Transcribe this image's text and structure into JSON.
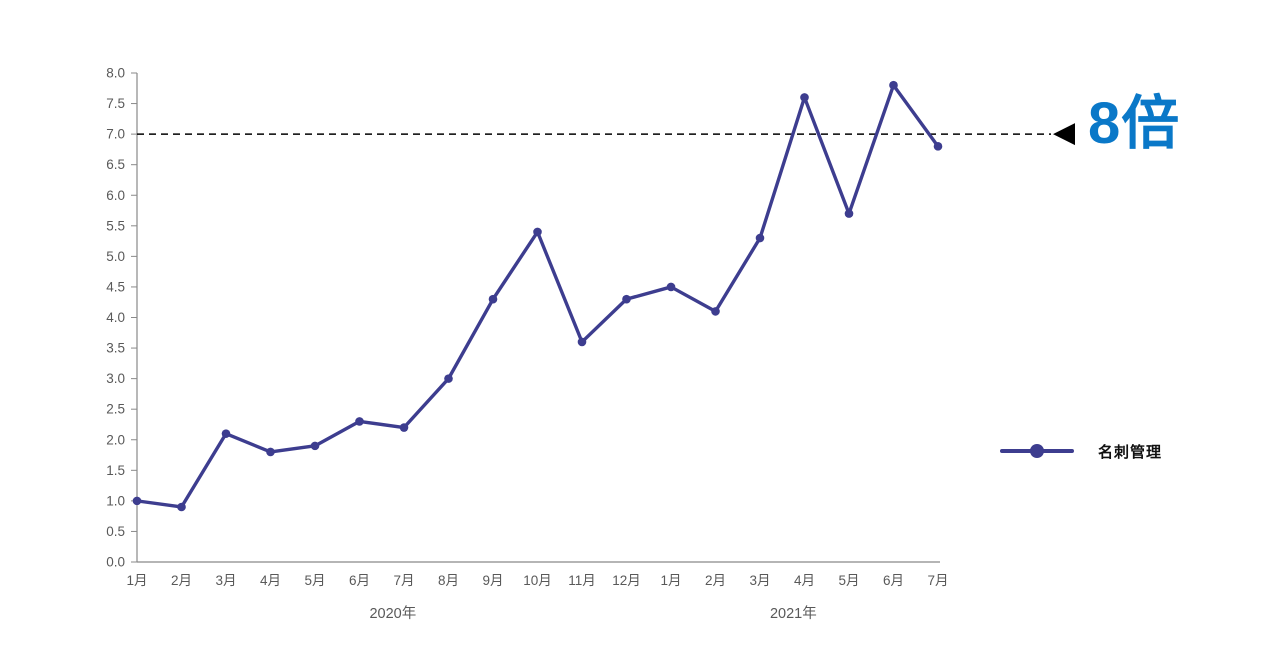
{
  "chart_data": {
    "type": "line",
    "title": "",
    "categories": [
      "1月",
      "2月",
      "3月",
      "4月",
      "5月",
      "6月",
      "7月",
      "8月",
      "9月",
      "10月",
      "11月",
      "12月",
      "1月",
      "2月",
      "3月",
      "4月",
      "5月",
      "6月",
      "7月"
    ],
    "series": [
      {
        "name": "名刺管理",
        "values": [
          1.0,
          0.9,
          2.1,
          1.8,
          1.9,
          2.3,
          2.2,
          3.0,
          4.3,
          5.4,
          3.6,
          4.3,
          4.5,
          4.1,
          5.3,
          7.6,
          5.7,
          7.8,
          6.8
        ]
      }
    ],
    "year_groups": [
      {
        "label": "2020年",
        "from": 0,
        "to": 11
      },
      {
        "label": "2021年",
        "from": 12,
        "to": 18
      }
    ],
    "ylim": [
      0,
      8
    ],
    "ytick_labels": [
      "0.0",
      "0.5",
      "1.0",
      "1.5",
      "2.0",
      "2.5",
      "3.0",
      "3.5",
      "4.0",
      "4.5",
      "5.0",
      "5.5",
      "6.0",
      "6.5",
      "7.0",
      "7.5",
      "8.0"
    ],
    "xlabel": "",
    "ylabel": "",
    "grid": false,
    "legend_position": "right",
    "annotation": {
      "y": 7.0,
      "label": "8倍",
      "arrow": "left"
    }
  },
  "colors": {
    "series": "#3d3d8f",
    "annotation_label": "#0a78c8",
    "dashed_line": "#000000",
    "axis": "#898989",
    "tick_text": "#595959"
  }
}
